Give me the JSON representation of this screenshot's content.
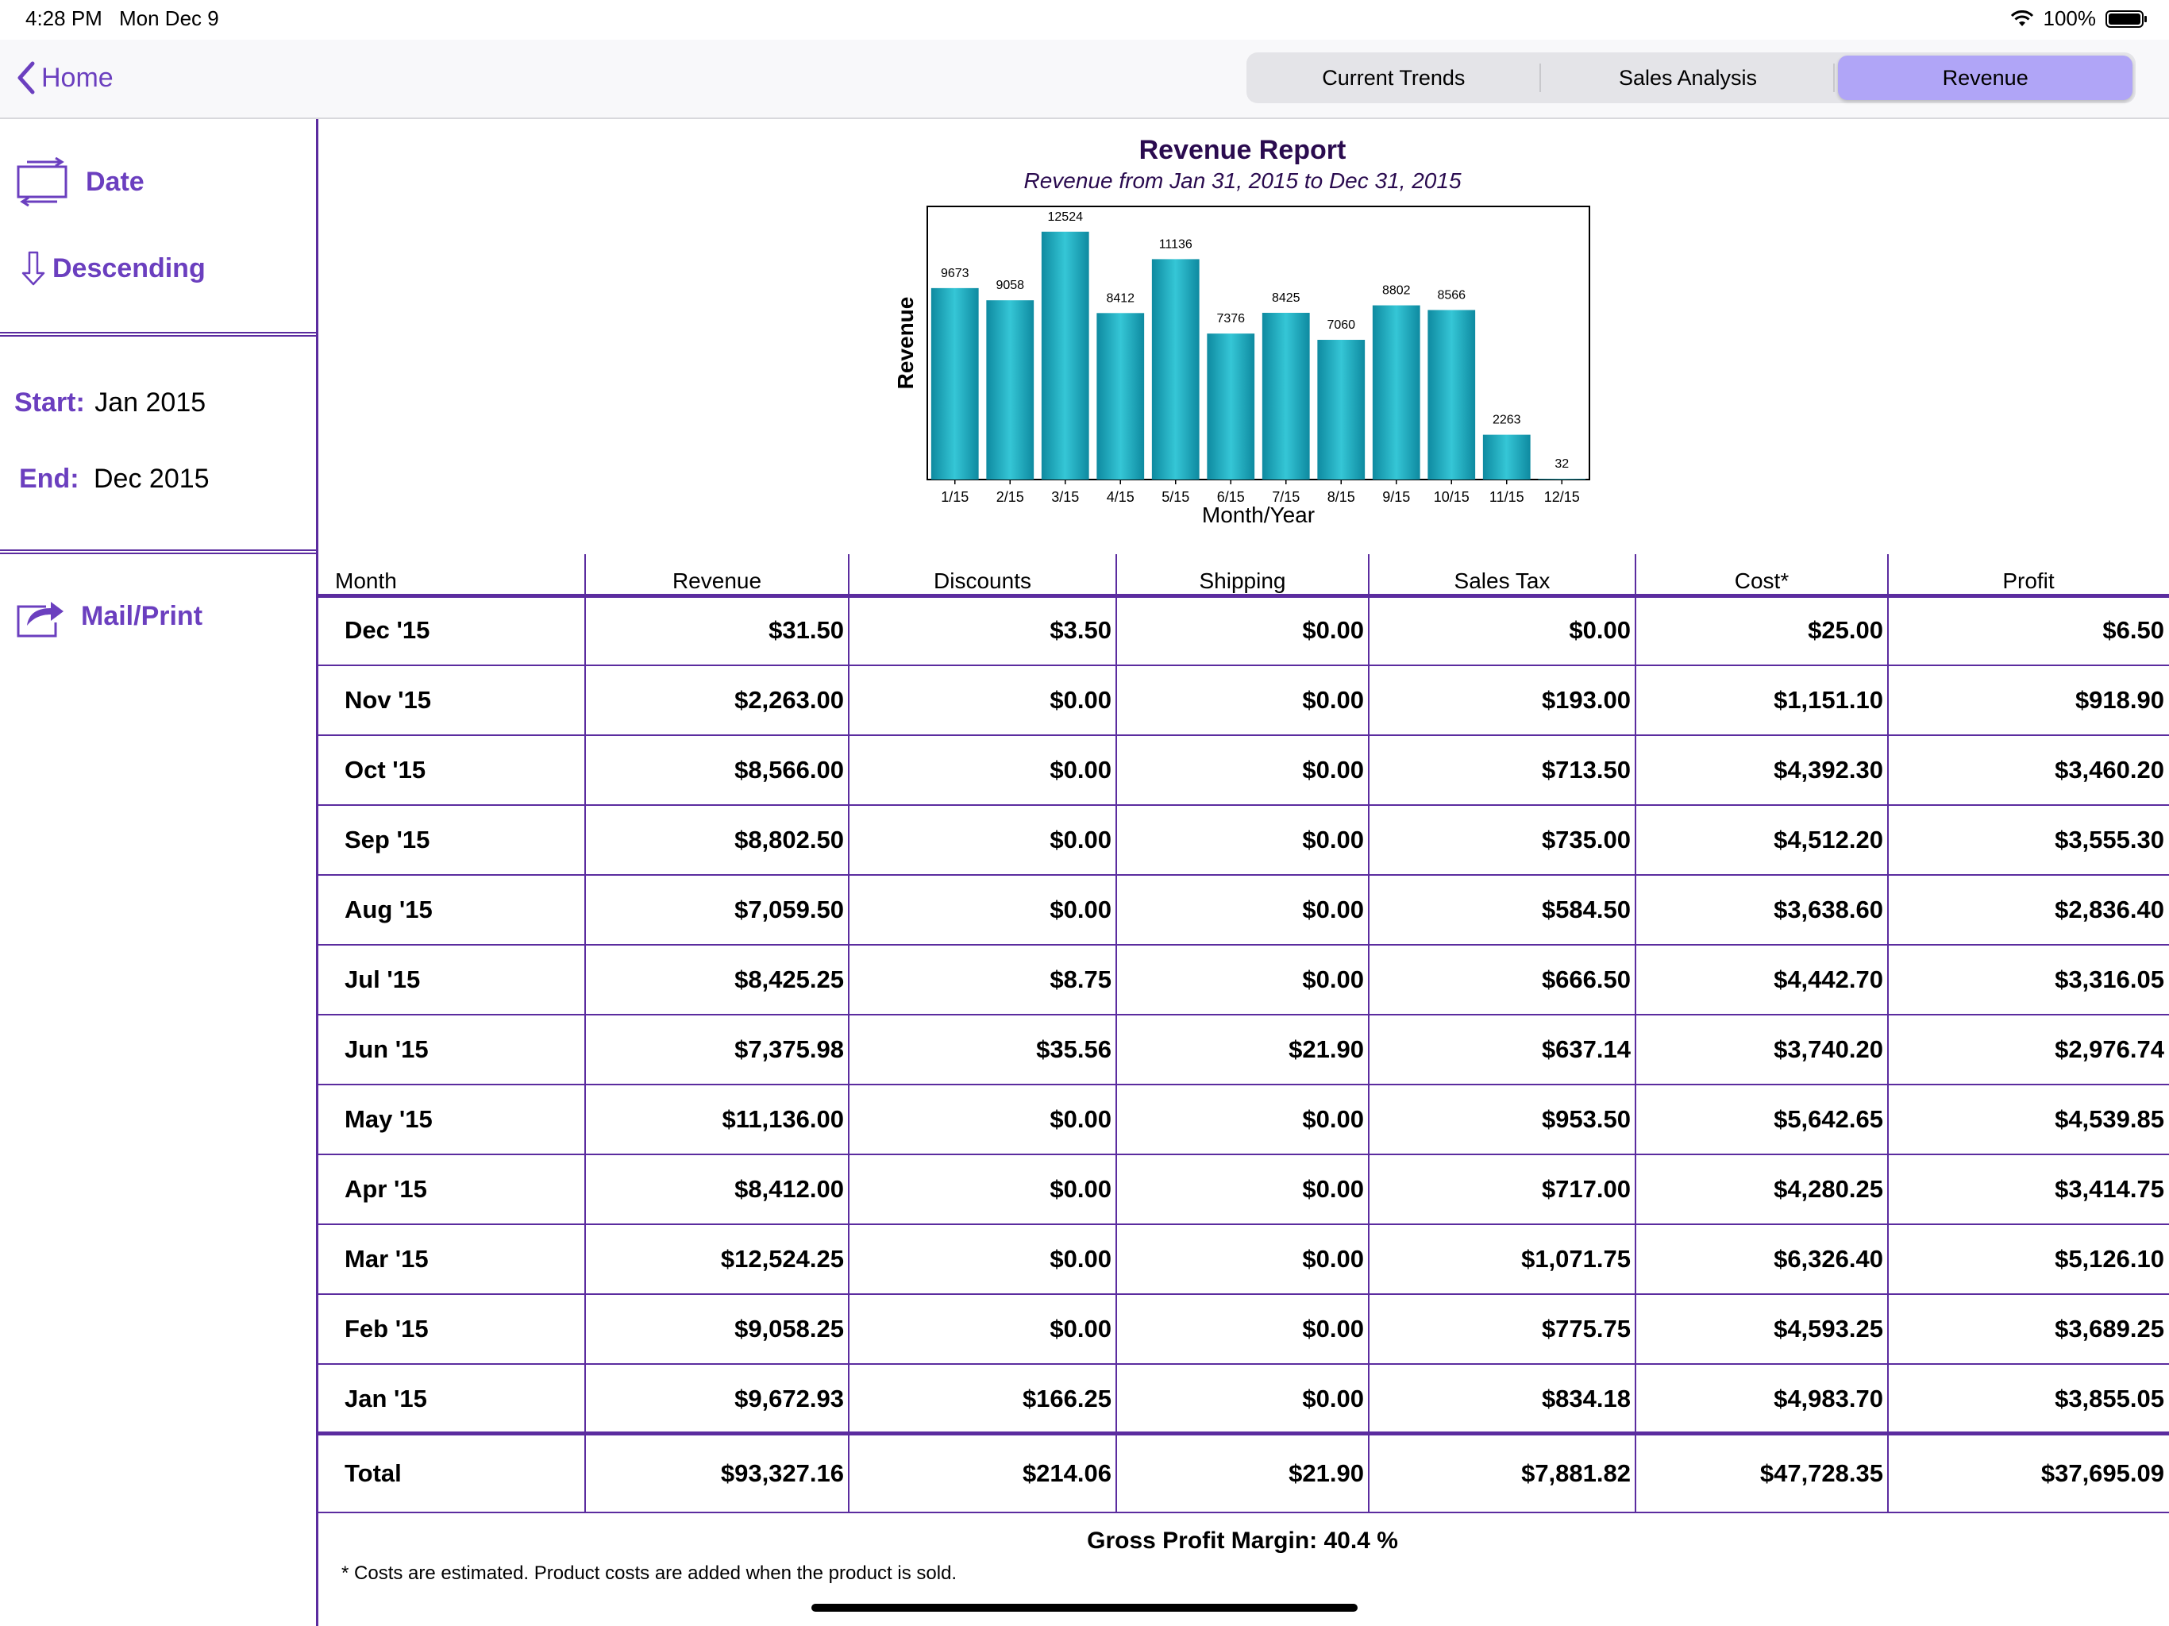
{
  "status_bar": {
    "time": "4:28 PM",
    "date": "Mon Dec 9",
    "battery": "100%"
  },
  "nav": {
    "back_label": "Home",
    "tabs": [
      {
        "label": "Current Trends",
        "active": false
      },
      {
        "label": "Sales Analysis",
        "active": false
      },
      {
        "label": "Revenue",
        "active": true
      }
    ]
  },
  "sidebar": {
    "sort_field": "Date",
    "sort_order": "Descending",
    "start_label": "Start:",
    "start_value": "Jan 2015",
    "end_label": "End:",
    "end_value": "Dec 2015",
    "mail_print": "Mail/Print"
  },
  "chart_data": {
    "type": "bar",
    "title": "Revenue Report",
    "subtitle": "Revenue from Jan 31, 2015 to Dec 31, 2015",
    "xlabel": "Month/Year",
    "ylabel": "Revenue",
    "categories": [
      "1/15",
      "2/15",
      "3/15",
      "4/15",
      "5/15",
      "6/15",
      "7/15",
      "8/15",
      "9/15",
      "10/15",
      "11/15",
      "12/15"
    ],
    "values": [
      9673,
      9058,
      12524,
      8412,
      11136,
      7376,
      8425,
      7060,
      8802,
      8566,
      2263,
      32
    ],
    "ylim": [
      0,
      13800
    ],
    "grid": false,
    "bar_color": "#1aa8bb"
  },
  "table": {
    "columns": [
      "Month",
      "Revenue",
      "Discounts",
      "Shipping",
      "Sales Tax",
      "Cost*",
      "Profit"
    ],
    "rows": [
      [
        "Dec '15",
        "$31.50",
        "$3.50",
        "$0.00",
        "$0.00",
        "$25.00",
        "$6.50"
      ],
      [
        "Nov '15",
        "$2,263.00",
        "$0.00",
        "$0.00",
        "$193.00",
        "$1,151.10",
        "$918.90"
      ],
      [
        "Oct '15",
        "$8,566.00",
        "$0.00",
        "$0.00",
        "$713.50",
        "$4,392.30",
        "$3,460.20"
      ],
      [
        "Sep '15",
        "$8,802.50",
        "$0.00",
        "$0.00",
        "$735.00",
        "$4,512.20",
        "$3,555.30"
      ],
      [
        "Aug '15",
        "$7,059.50",
        "$0.00",
        "$0.00",
        "$584.50",
        "$3,638.60",
        "$2,836.40"
      ],
      [
        "Jul '15",
        "$8,425.25",
        "$8.75",
        "$0.00",
        "$666.50",
        "$4,442.70",
        "$3,316.05"
      ],
      [
        "Jun '15",
        "$7,375.98",
        "$35.56",
        "$21.90",
        "$637.14",
        "$3,740.20",
        "$2,976.74"
      ],
      [
        "May '15",
        "$11,136.00",
        "$0.00",
        "$0.00",
        "$953.50",
        "$5,642.65",
        "$4,539.85"
      ],
      [
        "Apr '15",
        "$8,412.00",
        "$0.00",
        "$0.00",
        "$717.00",
        "$4,280.25",
        "$3,414.75"
      ],
      [
        "Mar '15",
        "$12,524.25",
        "$0.00",
        "$0.00",
        "$1,071.75",
        "$6,326.40",
        "$5,126.10"
      ],
      [
        "Feb '15",
        "$9,058.25",
        "$0.00",
        "$0.00",
        "$775.75",
        "$4,593.25",
        "$3,689.25"
      ],
      [
        "Jan '15",
        "$9,672.93",
        "$166.25",
        "$0.00",
        "$834.18",
        "$4,983.70",
        "$3,855.05"
      ]
    ],
    "total": [
      "Total",
      "$93,327.16",
      "$214.06",
      "$21.90",
      "$7,881.82",
      "$47,728.35",
      "$37,695.09"
    ]
  },
  "footer": {
    "gross_profit_margin": "Gross Profit Margin: 40.4 %",
    "note": "* Costs are estimated. Product costs are added when the product is sold."
  },
  "colors": {
    "accent": "#6b3fbf",
    "rule": "#5b2c9f",
    "active_tab": "#b0a5f7"
  }
}
